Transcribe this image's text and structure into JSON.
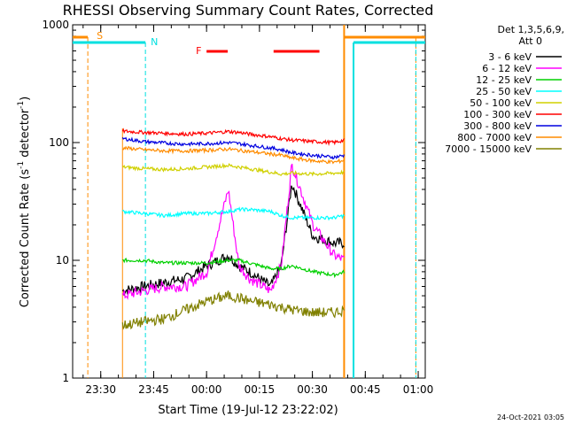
{
  "chart_data": {
    "type": "line",
    "title": "RHESSI Observing Summary Count Rates, Corrected",
    "xlabel": "Start Time (19-Jul-12 23:22:02)",
    "ylabel_main": "Corrected Count Rate (s",
    "ylabel_sup1": "-1",
    "ylabel_mid": " detector",
    "ylabel_sup2": "-1",
    "ylabel_end": ")",
    "y_scale": "log",
    "ylim": [
      1,
      1000
    ],
    "y_ticks": [
      "1",
      "10",
      "100",
      "1000"
    ],
    "xlim": [
      "23:22:02",
      "01:02:00"
    ],
    "x_ticks": [
      "23:30",
      "23:45",
      "00:00",
      "00:15",
      "00:30",
      "00:45",
      "01:00"
    ],
    "legend_header": [
      "Det 1,3,5,6,9,",
      "Att 0"
    ],
    "legend_position": "right",
    "grid": false,
    "data_start": "23:36:10",
    "data_end": "00:39:00",
    "night_markers": {
      "N_label": "N",
      "N_time": "23:42:40",
      "N_end": "00:41:40",
      "N_color": "#00e0e0",
      "S_label": "S",
      "S_time": "23:26:20",
      "S_end": "00:59:20",
      "S_color": "#ff8c00"
    },
    "flare_flag": {
      "label": "F",
      "color": "#ff0000",
      "intervals": [
        [
          "00:00:00",
          "00:06:00"
        ],
        [
          "00:19:00",
          "00:32:00"
        ]
      ]
    },
    "x_hours": [
      0.0,
      0.1,
      0.2,
      0.3,
      0.4,
      0.5,
      0.55,
      0.6,
      0.7,
      0.75,
      0.8,
      0.9,
      1.0,
      1.05
    ],
    "series": [
      {
        "name": "3 - 6 keV",
        "color": "#000000",
        "values": [
          5.5,
          6,
          6.5,
          7,
          9,
          11,
          9,
          8,
          6,
          9,
          45,
          16,
          14,
          14
        ]
      },
      {
        "name": "6 - 12 keV",
        "color": "#ff00ff",
        "values": [
          5,
          5.5,
          6,
          6,
          8,
          40,
          9,
          7,
          5.5,
          9,
          65,
          20,
          11,
          10
        ]
      },
      {
        "name": "12 - 25 keV",
        "color": "#00d000",
        "values": [
          10,
          10,
          9.5,
          9.5,
          9.5,
          10,
          10,
          9.5,
          8.5,
          8.5,
          9,
          8,
          7.5,
          8
        ]
      },
      {
        "name": "25 - 50 keV",
        "color": "#00ffff",
        "values": [
          26,
          25,
          24,
          25,
          25,
          26,
          27,
          27,
          26,
          24,
          23,
          23,
          23,
          24
        ]
      },
      {
        "name": "50 - 100 keV",
        "color": "#d0d000",
        "values": [
          62,
          60,
          59,
          60,
          62,
          64,
          62,
          60,
          56,
          54,
          55,
          54,
          55,
          56
        ]
      },
      {
        "name": "100 - 300 keV",
        "color": "#ff0000",
        "values": [
          125,
          122,
          120,
          118,
          120,
          124,
          122,
          118,
          112,
          108,
          105,
          102,
          100,
          105
        ]
      },
      {
        "name": "300 - 800 keV",
        "color": "#0000e0",
        "values": [
          108,
          102,
          99,
          97,
          98,
          100,
          98,
          95,
          90,
          87,
          82,
          78,
          75,
          78
        ]
      },
      {
        "name": "800 - 7000 keV",
        "color": "#ff8c00",
        "values": [
          90,
          87,
          85,
          85,
          86,
          88,
          86,
          84,
          80,
          78,
          74,
          70,
          68,
          71
        ]
      },
      {
        "name": "7000 - 15000 keV",
        "color": "#808000",
        "values": [
          2.8,
          3,
          3.2,
          3.8,
          4.5,
          5,
          4.8,
          4.5,
          4.2,
          4,
          3.8,
          3.6,
          3.6,
          3.8
        ]
      }
    ]
  },
  "footer": {
    "date_stamp": "24-Oct-2021 03:05"
  }
}
